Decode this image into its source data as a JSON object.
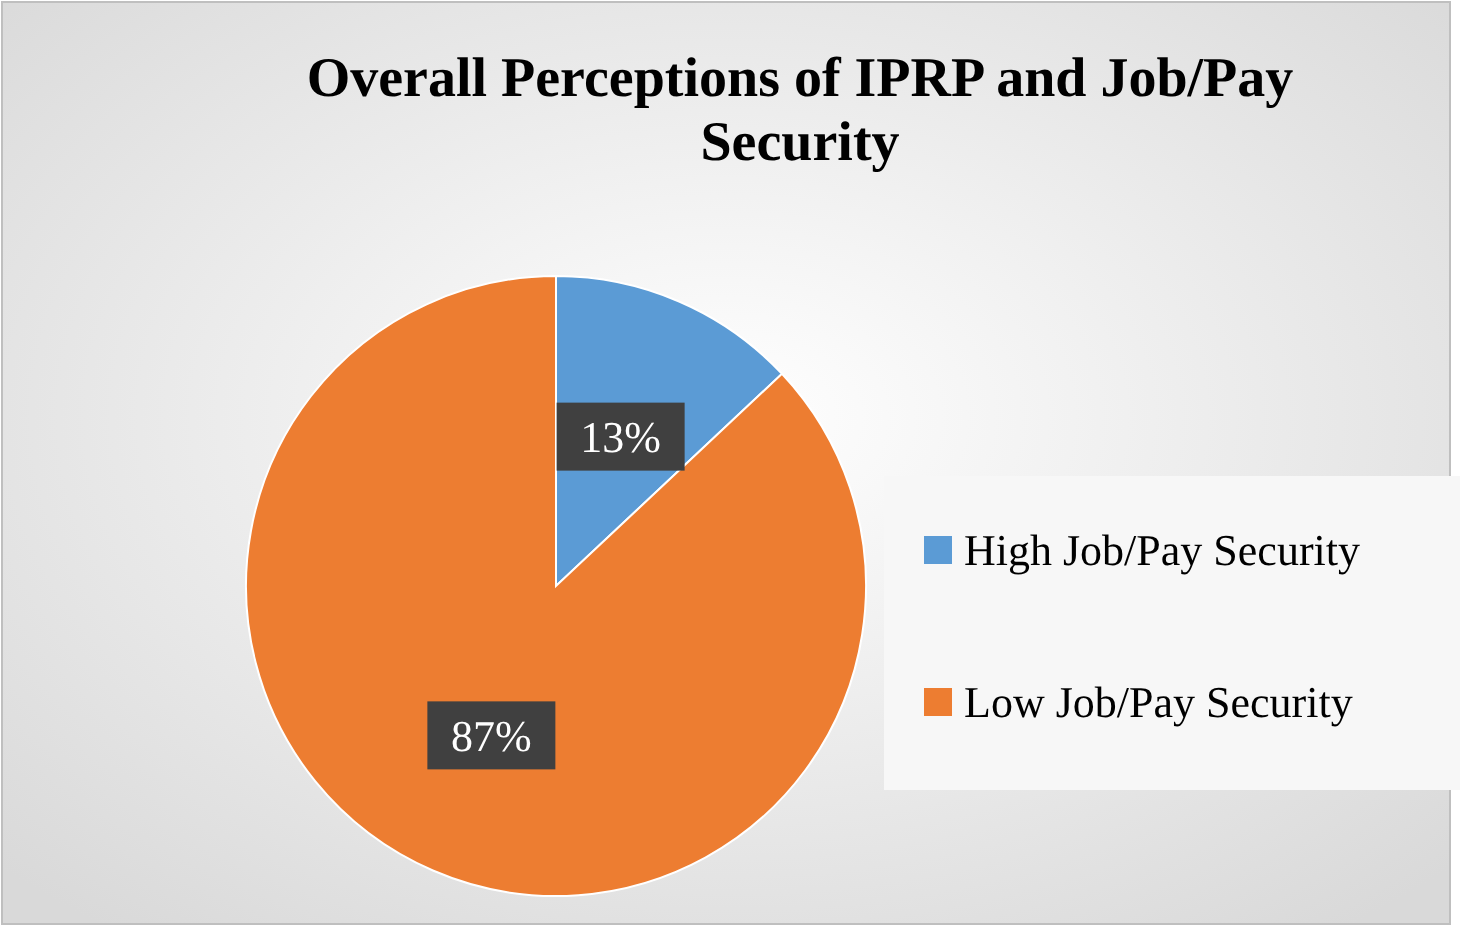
{
  "chart_data": {
    "type": "pie",
    "title": "Overall Perceptions of IPRP and Job/Pay Security",
    "categories": [
      "High Job/Pay Security",
      "Low Job/Pay Security"
    ],
    "values": [
      13,
      87
    ],
    "colors": [
      "#5b9bd5",
      "#ed7d31"
    ],
    "value_labels": [
      "13%",
      "87%"
    ],
    "legend": "right"
  }
}
